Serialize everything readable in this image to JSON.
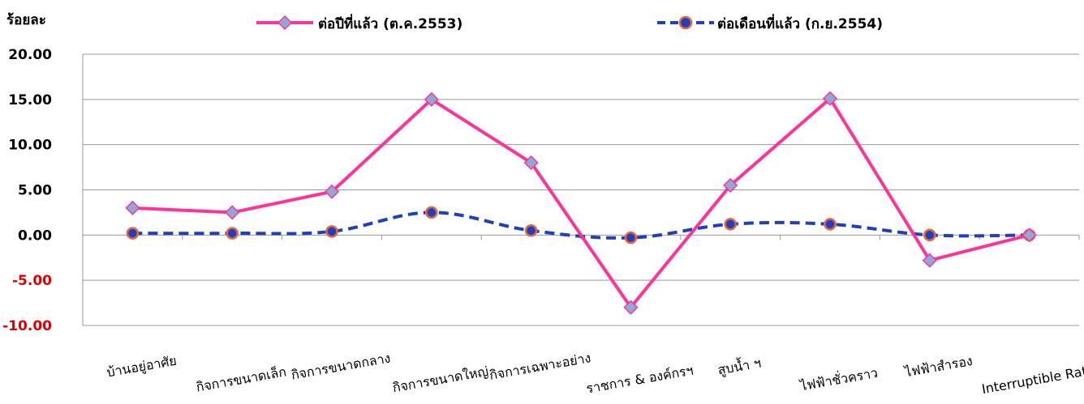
{
  "chart_data": {
    "type": "line",
    "ylabel": "ร้อยละ",
    "categories": [
      "บ้านอยู่อาศัย",
      "กิจการขนาดเล็ก",
      "กิจการขนาดกลาง",
      "กิจการขนาดใหญ่",
      "กิจการเฉพาะอย่าง",
      "ราชการ & องค์กรฯ",
      "สูบน้ำ ฯ",
      "ไฟฟ้าชั่วคราว",
      "ไฟฟ้าสำรอง",
      "Interruptible Rate"
    ],
    "y_ticks": [
      "20.00",
      "15.00",
      "10.00",
      "5.00",
      "0.00",
      "-5.00",
      "-10.00"
    ],
    "ylim": [
      -10,
      20
    ],
    "grid": true,
    "legend_position": "top",
    "series": [
      {
        "name": "ต่อปีที่แล้ว (ต.ค.2553)",
        "color": "#ff3399",
        "marker": "diamond",
        "marker_color": "#8fa8d6",
        "line_style": "solid",
        "values": [
          3.0,
          2.5,
          4.8,
          15.0,
          8.0,
          -8.0,
          5.5,
          15.1,
          -2.8,
          0.0
        ]
      },
      {
        "name": "ต่อเดือนที่แล้ว (ก.ย.2554)",
        "color": "#1f3fbf",
        "marker": "circle",
        "marker_color": "#e8653c",
        "line_style": "dashed",
        "values": [
          0.2,
          0.2,
          0.4,
          2.5,
          0.5,
          -0.3,
          1.2,
          1.2,
          0.0,
          0.0
        ]
      }
    ],
    "tick_colors": {
      "positive": "#000000",
      "negative": "#e00000"
    }
  }
}
